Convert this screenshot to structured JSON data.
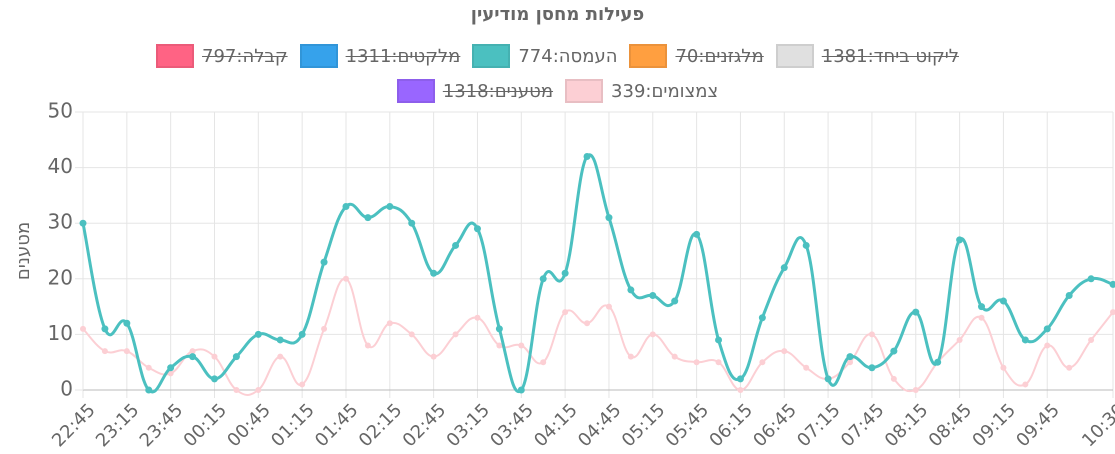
{
  "chart_data": {
    "type": "line",
    "title": "פעילות מחסן מודיעין",
    "y_label": "מטענים",
    "categories": [
      "22:45",
      null,
      "23:15",
      null,
      "23:45",
      null,
      "00:15",
      null,
      "00:45",
      null,
      "01:15",
      null,
      "01:45",
      null,
      "02:15",
      null,
      "02:45",
      null,
      "03:15",
      null,
      "03:45",
      null,
      "04:15",
      null,
      "04:45",
      null,
      "05:15",
      null,
      "05:45",
      null,
      "06:15",
      null,
      "06:45",
      null,
      "07:15",
      null,
      "07:45",
      null,
      "08:15",
      null,
      "08:45",
      null,
      "09:15",
      null,
      "09:45",
      null,
      null,
      "10:30"
    ],
    "series": [
      {
        "name": "קבלה:797",
        "color": "#ff6384",
        "hidden": true
      },
      {
        "name": "מלקטים:1311",
        "color": "#36a2eb",
        "hidden": true
      },
      {
        "name": "העמסה:774",
        "color": "#4bc0c0",
        "hidden": false,
        "values": [
          30,
          11,
          12,
          0,
          4,
          6,
          2,
          6,
          10,
          9,
          10,
          23,
          33,
          31,
          33,
          30,
          21,
          26,
          29,
          11,
          0,
          20,
          21,
          42,
          31,
          18,
          17,
          16,
          28,
          9,
          2,
          13,
          22,
          26,
          2,
          6,
          4,
          7,
          14,
          5,
          27,
          15,
          16,
          9,
          11,
          17,
          20,
          19
        ]
      },
      {
        "name": "מלגזנים:70",
        "color": "#ff9f40",
        "hidden": true
      },
      {
        "name": "ליקוט ביחד:1381",
        "color": "#e0e0e0",
        "hidden": true
      },
      {
        "name": "מטענים:1318",
        "color": "#9966ff",
        "hidden": true
      },
      {
        "name": "צמצומים:339",
        "color": "#fccfd4",
        "hidden": false,
        "values": [
          11,
          7,
          7,
          4,
          3,
          7,
          6,
          0,
          0,
          6,
          1,
          11,
          20,
          8,
          12,
          10,
          6,
          10,
          13,
          8,
          8,
          5,
          14,
          12,
          15,
          6,
          10,
          6,
          5,
          5,
          0,
          5,
          7,
          4,
          2,
          5,
          10,
          2,
          0,
          5,
          9,
          13,
          4,
          1,
          8,
          4,
          9,
          14
        ]
      }
    ],
    "ylim": [
      0,
      50
    ],
    "yticks": [
      0,
      10,
      20,
      30,
      40,
      50
    ],
    "grid": true
  }
}
